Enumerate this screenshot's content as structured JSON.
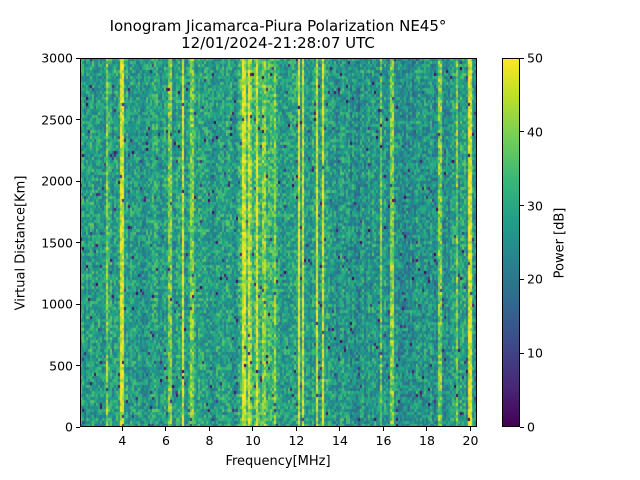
{
  "chart_data": {
    "type": "heatmap",
    "title": "Ionogram Jicamarca-Piura Polarization NE45°",
    "subtitle": "12/01/2024-21:28:07 UTC",
    "xlabel": "Frequency[MHz]",
    "ylabel": "Virtual Distance[Km]",
    "colorbar_label": "Power [dB]",
    "xlim": [
      2.05,
      20.3
    ],
    "ylim": [
      0,
      3000
    ],
    "clim": [
      0,
      50
    ],
    "colormap": "viridis",
    "xticks": [
      "4",
      "6",
      "8",
      "10",
      "12",
      "14",
      "16",
      "18",
      "20"
    ],
    "yticks": [
      "0",
      "500",
      "1000",
      "1500",
      "2000",
      "2500",
      "3000"
    ],
    "cticks": [
      "0",
      "10",
      "20",
      "30",
      "40",
      "50"
    ],
    "background_level_db": 28,
    "strong_frequencies_mhz": [
      4.0,
      6.8,
      9.6,
      9.8,
      10.2,
      12.1,
      12.3,
      12.95,
      13.2,
      20.0
    ],
    "moderate_frequencies_mhz": [
      3.3,
      6.2,
      7.2,
      9.9,
      10.5,
      11.0,
      15.9,
      16.4,
      18.6,
      19.4
    ]
  }
}
